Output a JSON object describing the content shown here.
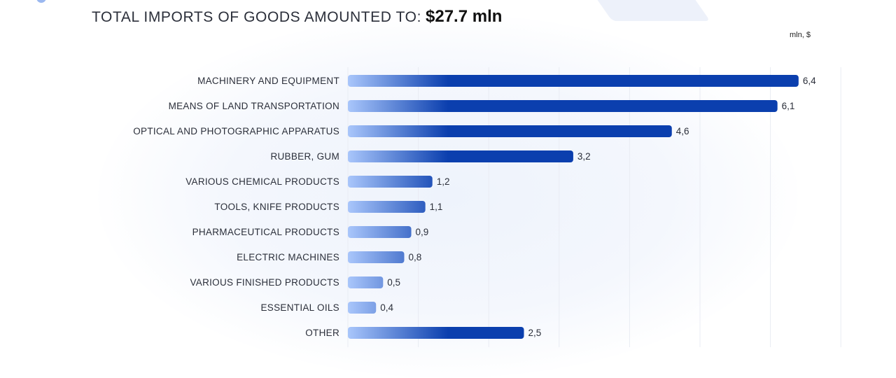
{
  "header": {
    "title_prefix": "TOTAL IMPORTS OF GOODS AMOUNTED TO:",
    "total": "$27.7 mln"
  },
  "unit_label": "mln, $",
  "colors": {
    "bar_start": "#a9c6fb",
    "bar_end": "#0b3fae",
    "grid": "#e9ecf3"
  },
  "chart_data": {
    "type": "bar",
    "orientation": "horizontal",
    "categories": [
      "MACHINERY AND EQUIPMENT",
      "MEANS OF LAND TRANSPORTATION",
      "OPTICAL AND PHOTOGRAPHIC APPARATUS",
      "RUBBER, GUM",
      "VARIOUS CHEMICAL PRODUCTS",
      "TOOLS, KNIFE PRODUCTS",
      "PHARMACEUTICAL PRODUCTS",
      "ELECTRIC MACHINES",
      "VARIOUS FINISHED PRODUCTS",
      "ESSENTIAL OILS",
      "OTHER"
    ],
    "values": [
      6.4,
      6.1,
      4.6,
      3.2,
      1.2,
      1.1,
      0.9,
      0.8,
      0.5,
      0.4,
      2.5
    ],
    "value_labels": [
      "6,4",
      "6,1",
      "4,6",
      "3,2",
      "1,2",
      "1,1",
      "0,9",
      "0,8",
      "0,5",
      "0,4",
      "2,5"
    ],
    "title": "TOTAL IMPORTS OF GOODS AMOUNTED TO: $27.7 mln",
    "xlabel": "mln, $",
    "xlim": [
      0,
      7
    ],
    "grid": true
  }
}
